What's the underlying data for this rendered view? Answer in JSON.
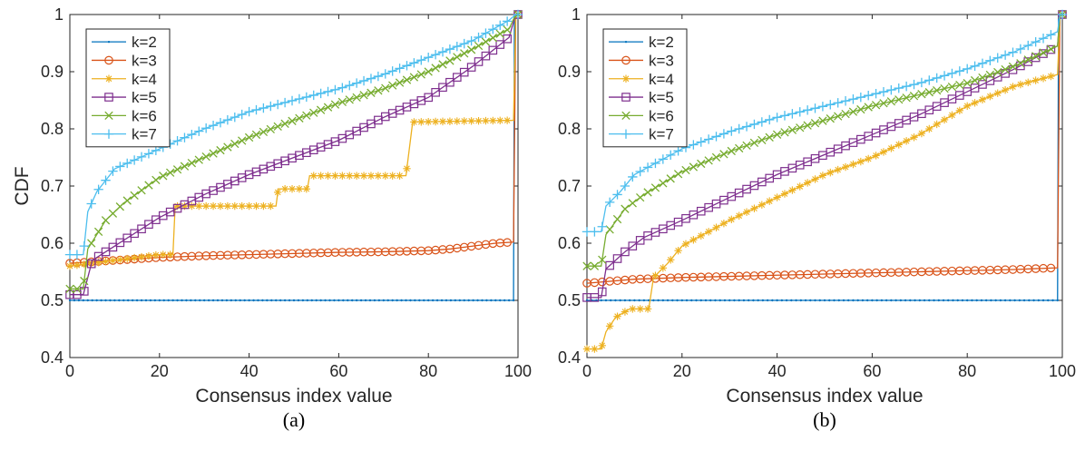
{
  "chart_data": [
    {
      "type": "line",
      "caption": "(a)",
      "xlabel": "Consensus index value",
      "ylabel": "CDF",
      "xlim": [
        0,
        100
      ],
      "ylim": [
        0.4,
        1
      ],
      "xticks": [
        "0",
        "20",
        "40",
        "60",
        "80",
        "100"
      ],
      "yticks": [
        "0.4",
        "0.5",
        "0.6",
        "0.7",
        "0.8",
        "0.9",
        "1"
      ],
      "legend_position": "top-left",
      "grid": false,
      "series": [
        {
          "name": "k=2",
          "color": "#0072BD",
          "marker": "point",
          "points": [
            [
              0,
              0.5
            ],
            [
              20,
              0.5
            ],
            [
              40,
              0.5
            ],
            [
              60,
              0.5
            ],
            [
              80,
              0.5
            ],
            [
              99,
              0.5
            ],
            [
              99.2,
              1.0
            ],
            [
              100,
              1.0
            ]
          ]
        },
        {
          "name": "k=3",
          "color": "#D95319",
          "marker": "circle",
          "points": [
            [
              0,
              0.565
            ],
            [
              10,
              0.57
            ],
            [
              20,
              0.575
            ],
            [
              30,
              0.578
            ],
            [
              40,
              0.58
            ],
            [
              50,
              0.582
            ],
            [
              60,
              0.584
            ],
            [
              70,
              0.585
            ],
            [
              80,
              0.587
            ],
            [
              85,
              0.59
            ],
            [
              90,
              0.595
            ],
            [
              95,
              0.6
            ],
            [
              99,
              0.602
            ],
            [
              99.5,
              1.0
            ],
            [
              100,
              1.0
            ]
          ]
        },
        {
          "name": "k=4",
          "color": "#EDB120",
          "marker": "asterisk",
          "points": [
            [
              0,
              0.56
            ],
            [
              10,
              0.57
            ],
            [
              20,
              0.58
            ],
            [
              23,
              0.58
            ],
            [
              23.5,
              0.665
            ],
            [
              40,
              0.665
            ],
            [
              46,
              0.665
            ],
            [
              46.5,
              0.695
            ],
            [
              53,
              0.695
            ],
            [
              53.5,
              0.718
            ],
            [
              75,
              0.718
            ],
            [
              76.5,
              0.812
            ],
            [
              99,
              0.815
            ],
            [
              99.5,
              1.0
            ],
            [
              100,
              1.0
            ]
          ]
        },
        {
          "name": "k=5",
          "color": "#7E2F8E",
          "marker": "square",
          "points": [
            [
              0,
              0.51
            ],
            [
              3,
              0.51
            ],
            [
              5,
              0.57
            ],
            [
              10,
              0.595
            ],
            [
              20,
              0.645
            ],
            [
              30,
              0.685
            ],
            [
              40,
              0.72
            ],
            [
              50,
              0.75
            ],
            [
              60,
              0.78
            ],
            [
              70,
              0.82
            ],
            [
              80,
              0.855
            ],
            [
              90,
              0.91
            ],
            [
              98,
              0.96
            ],
            [
              99.5,
              1.0
            ],
            [
              100,
              1.0
            ]
          ]
        },
        {
          "name": "k=6",
          "color": "#77AC30",
          "marker": "x",
          "points": [
            [
              0,
              0.52
            ],
            [
              3,
              0.52
            ],
            [
              4,
              0.59
            ],
            [
              8,
              0.64
            ],
            [
              12,
              0.67
            ],
            [
              20,
              0.715
            ],
            [
              30,
              0.75
            ],
            [
              40,
              0.785
            ],
            [
              50,
              0.815
            ],
            [
              60,
              0.845
            ],
            [
              70,
              0.87
            ],
            [
              80,
              0.9
            ],
            [
              90,
              0.94
            ],
            [
              98,
              0.975
            ],
            [
              99.5,
              1.0
            ],
            [
              100,
              1.0
            ]
          ]
        },
        {
          "name": "k=7",
          "color": "#4DBEEE",
          "marker": "plus",
          "points": [
            [
              0,
              0.58
            ],
            [
              3,
              0.58
            ],
            [
              4,
              0.655
            ],
            [
              6,
              0.69
            ],
            [
              10,
              0.73
            ],
            [
              20,
              0.765
            ],
            [
              30,
              0.8
            ],
            [
              40,
              0.83
            ],
            [
              50,
              0.85
            ],
            [
              60,
              0.87
            ],
            [
              70,
              0.895
            ],
            [
              80,
              0.925
            ],
            [
              90,
              0.955
            ],
            [
              98,
              0.99
            ],
            [
              99.5,
              1.0
            ],
            [
              100,
              1.0
            ]
          ]
        }
      ]
    },
    {
      "type": "line",
      "caption": "(b)",
      "xlabel": "Consensus index value",
      "ylabel": "",
      "xlim": [
        0,
        100
      ],
      "ylim": [
        0.4,
        1
      ],
      "xticks": [
        "0",
        "20",
        "40",
        "60",
        "80",
        "100"
      ],
      "yticks": [
        "0.4",
        "0.5",
        "0.6",
        "0.7",
        "0.8",
        "0.9",
        "1"
      ],
      "legend_position": "top-left",
      "grid": false,
      "series": [
        {
          "name": "k=2",
          "color": "#0072BD",
          "marker": "point",
          "points": [
            [
              0,
              0.5
            ],
            [
              20,
              0.5
            ],
            [
              40,
              0.5
            ],
            [
              60,
              0.5
            ],
            [
              80,
              0.5
            ],
            [
              99,
              0.5
            ],
            [
              99.2,
              1.0
            ],
            [
              100,
              1.0
            ]
          ]
        },
        {
          "name": "k=3",
          "color": "#D95319",
          "marker": "circle",
          "points": [
            [
              0,
              0.53
            ],
            [
              10,
              0.537
            ],
            [
              20,
              0.54
            ],
            [
              30,
              0.542
            ],
            [
              40,
              0.544
            ],
            [
              50,
              0.546
            ],
            [
              60,
              0.548
            ],
            [
              70,
              0.55
            ],
            [
              80,
              0.552
            ],
            [
              90,
              0.554
            ],
            [
              99,
              0.557
            ],
            [
              99.5,
              1.0
            ],
            [
              100,
              1.0
            ]
          ]
        },
        {
          "name": "k=4",
          "color": "#EDB120",
          "marker": "asterisk",
          "points": [
            [
              0,
              0.415
            ],
            [
              3,
              0.415
            ],
            [
              4,
              0.445
            ],
            [
              6,
              0.47
            ],
            [
              9,
              0.485
            ],
            [
              13,
              0.485
            ],
            [
              14,
              0.54
            ],
            [
              17,
              0.565
            ],
            [
              20,
              0.595
            ],
            [
              30,
              0.64
            ],
            [
              40,
              0.68
            ],
            [
              50,
              0.72
            ],
            [
              60,
              0.75
            ],
            [
              70,
              0.79
            ],
            [
              80,
              0.84
            ],
            [
              90,
              0.875
            ],
            [
              99,
              0.895
            ],
            [
              99.5,
              1.0
            ],
            [
              100,
              1.0
            ]
          ]
        },
        {
          "name": "k=5",
          "color": "#7E2F8E",
          "marker": "square",
          "points": [
            [
              0,
              0.505
            ],
            [
              3,
              0.505
            ],
            [
              4,
              0.555
            ],
            [
              8,
              0.585
            ],
            [
              12,
              0.61
            ],
            [
              20,
              0.64
            ],
            [
              30,
              0.68
            ],
            [
              40,
              0.72
            ],
            [
              50,
              0.755
            ],
            [
              60,
              0.79
            ],
            [
              70,
              0.825
            ],
            [
              80,
              0.865
            ],
            [
              90,
              0.905
            ],
            [
              99,
              0.945
            ],
            [
              99.5,
              1.0
            ],
            [
              100,
              1.0
            ]
          ]
        },
        {
          "name": "k=6",
          "color": "#77AC30",
          "marker": "x",
          "points": [
            [
              0,
              0.56
            ],
            [
              3,
              0.56
            ],
            [
              4,
              0.615
            ],
            [
              8,
              0.66
            ],
            [
              12,
              0.685
            ],
            [
              20,
              0.725
            ],
            [
              30,
              0.76
            ],
            [
              40,
              0.79
            ],
            [
              50,
              0.815
            ],
            [
              60,
              0.84
            ],
            [
              70,
              0.86
            ],
            [
              80,
              0.88
            ],
            [
              90,
              0.91
            ],
            [
              99,
              0.945
            ],
            [
              99.5,
              1.0
            ],
            [
              100,
              1.0
            ]
          ]
        },
        {
          "name": "k=7",
          "color": "#4DBEEE",
          "marker": "plus",
          "points": [
            [
              0,
              0.62
            ],
            [
              3,
              0.62
            ],
            [
              4,
              0.665
            ],
            [
              7,
              0.69
            ],
            [
              10,
              0.72
            ],
            [
              20,
              0.765
            ],
            [
              30,
              0.795
            ],
            [
              40,
              0.82
            ],
            [
              50,
              0.84
            ],
            [
              60,
              0.86
            ],
            [
              70,
              0.88
            ],
            [
              80,
              0.905
            ],
            [
              90,
              0.935
            ],
            [
              99,
              0.97
            ],
            [
              99.5,
              1.0
            ],
            [
              100,
              1.0
            ]
          ]
        }
      ]
    }
  ]
}
